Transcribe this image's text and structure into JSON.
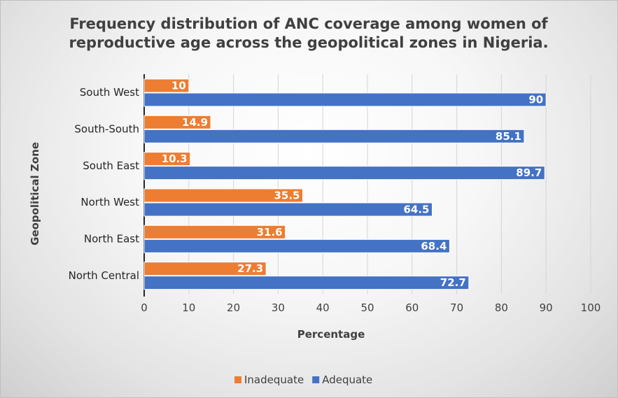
{
  "chart_data": {
    "type": "bar",
    "orientation": "horizontal",
    "title": "Frequency distribution of ANC coverage among women of reproductive age across the geopolitical zones in Nigeria.",
    "title_lines": [
      "Frequency distribution of ANC coverage among women of",
      "reproductive age across the geopolitical zones in Nigeria."
    ],
    "xlabel": "Percentage",
    "ylabel": "Geopolitical Zone",
    "xlim": [
      0,
      100
    ],
    "xticks": [
      0,
      10,
      20,
      30,
      40,
      50,
      60,
      70,
      80,
      90,
      100
    ],
    "categories": [
      "South West",
      "South-South",
      "South East",
      "North West",
      "North East",
      "North Central"
    ],
    "series": [
      {
        "name": "Inadequate",
        "color": "#ED7D31",
        "values": [
          10,
          14.9,
          10.3,
          35.5,
          31.6,
          27.3
        ]
      },
      {
        "name": "Adequate",
        "color": "#4472C4",
        "values": [
          90,
          85.1,
          89.7,
          64.5,
          68.4,
          72.7
        ]
      }
    ],
    "legend_position": "bottom",
    "grid": true
  }
}
